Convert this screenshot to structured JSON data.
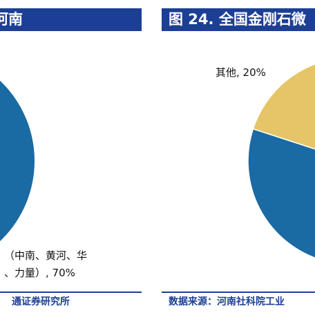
{
  "left_panel": {
    "title": "河南",
    "source": "通证券研究所"
  },
  "right_panel": {
    "title": "图 24. 全国金刚石微",
    "source": "数据来源：河南社科院工业"
  },
  "chart_data": [
    {
      "type": "pie",
      "title": "河南",
      "categories": [
        "（中南、黄河、华…、力量）"
      ],
      "values": [
        70
      ],
      "label_lines": [
        "（中南、黄河、华",
        "、力量）, 70%"
      ],
      "colors": [
        "#1a6aa4"
      ]
    },
    {
      "type": "pie",
      "title": "图 24. 全国金刚石微",
      "categories": [
        "其他",
        ""
      ],
      "values": [
        20,
        80
      ],
      "label_text": "其他, 20%",
      "colors": [
        "#e5c567",
        "#1a6aa4"
      ]
    }
  ]
}
